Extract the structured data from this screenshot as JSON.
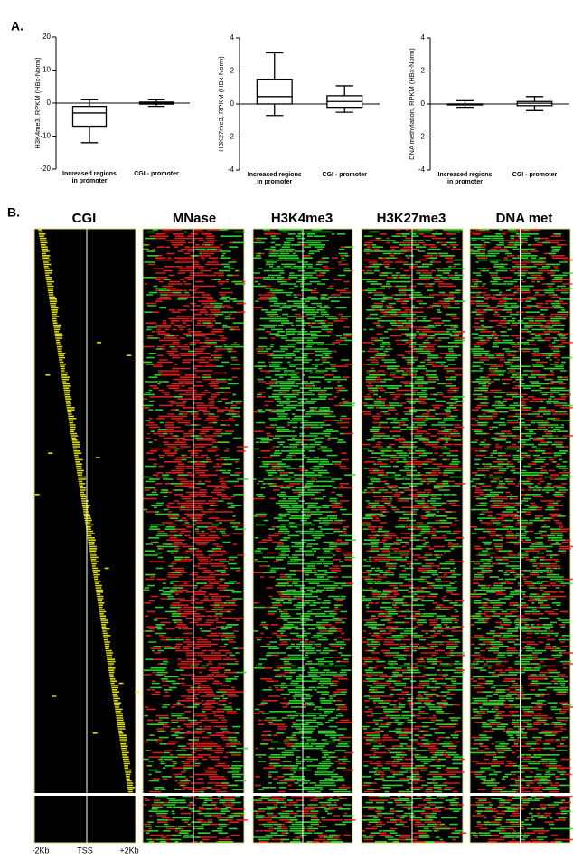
{
  "panel_labels": [
    "A.",
    "B."
  ],
  "chart_data": [
    {
      "type": "box",
      "ylabel": "H3K4me3, RPKM (HBx-Norm)",
      "categories": [
        [
          "Increased regions",
          "in promoter"
        ],
        [
          "CGI - promoter"
        ]
      ],
      "whisker_low": [
        -12,
        -1
      ],
      "q1": [
        -7,
        -0.3
      ],
      "median": [
        -3,
        0
      ],
      "q3": [
        -1,
        0.3
      ],
      "whisker_high": [
        1,
        1
      ],
      "ylim": [
        -20,
        20
      ],
      "yticks": [
        -20,
        -10,
        0,
        10,
        20
      ],
      "zero_line": true
    },
    {
      "type": "box",
      "ylabel": "H3K27me3, RPKM (HBx-Norm)",
      "categories": [
        [
          "Increased regions",
          "in promoter"
        ],
        [
          "CGI - promoter"
        ]
      ],
      "whisker_low": [
        -0.7,
        -0.5
      ],
      "q1": [
        0,
        -0.2
      ],
      "median": [
        0.45,
        0.15
      ],
      "q3": [
        1.5,
        0.5
      ],
      "whisker_high": [
        3.1,
        1.1
      ],
      "ylim": [
        -4,
        4
      ],
      "yticks": [
        -4,
        -2,
        0,
        2,
        4
      ],
      "zero_line": true
    },
    {
      "type": "box",
      "ylabel": "DNA methylation, RPKM (HBx-Norm)",
      "categories": [
        [
          "Increased regions",
          "in promoter"
        ],
        [
          "CGI - promoter"
        ]
      ],
      "whisker_low": [
        -0.2,
        -0.4
      ],
      "q1": [
        0,
        -0.1
      ],
      "median": [
        0,
        0.05
      ],
      "q3": [
        0,
        0.15
      ],
      "whisker_high": [
        0.2,
        0.45
      ],
      "ylim": [
        -4,
        4
      ],
      "yticks": [
        -4,
        -2,
        0,
        2,
        4
      ],
      "zero_line": true
    }
  ],
  "heatmaps": [
    "CGI",
    "MNase",
    "H3K4me3",
    "H3K27me3",
    "DNA met"
  ],
  "x_axis_labels": [
    "-2Kb",
    "TSS",
    "+2Kb"
  ]
}
